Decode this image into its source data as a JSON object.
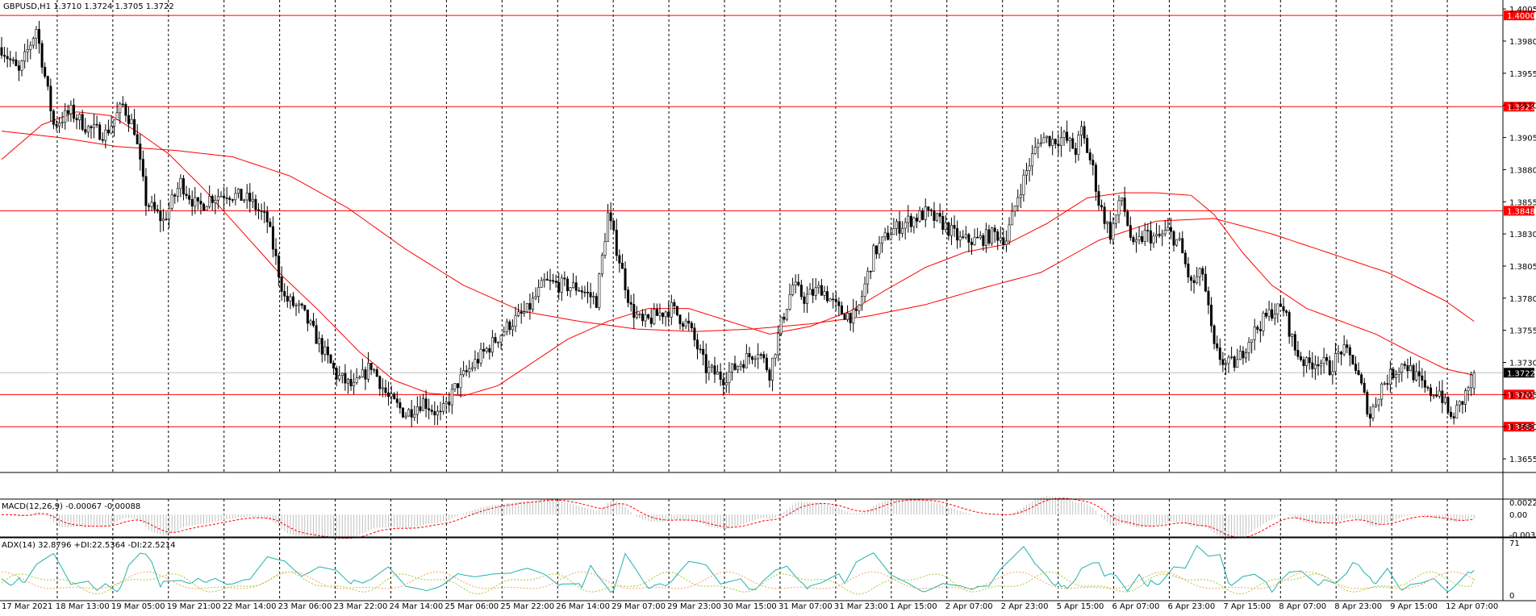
{
  "window": {
    "symbol_line": "GBPUSD,H1  1.3710 1.3724 1.3705 1.3722",
    "macd_label": "MACD(12,26,9) -0.00067 -0.00088",
    "adx_label": "ADX(14) 32.8796 +DI:22.5364 -DI:22.5214"
  },
  "colors": {
    "background": "#ffffff",
    "candle": "#000000",
    "level_line": "#ff0000",
    "ma": "#ff0000",
    "grid": "#000000",
    "price_tag_bg": "#ff0000",
    "current_price_tag_bg": "#000000",
    "macd_hist": "#c0c0c0",
    "macd_signal": "#ff0000",
    "adx_main": "#20b2aa",
    "di_plus": "#9acd32",
    "di_minus": "#f4a460"
  },
  "chart_data": [
    {
      "type": "candlestick",
      "symbol": "GBPUSD",
      "timeframe": "H1",
      "ohlc_last": {
        "open": 1.371,
        "high": 1.3724,
        "low": 1.3705,
        "close": 1.3722
      },
      "ylim": [
        1.3645,
        1.4012
      ],
      "y_ticks": [
        1.4005,
        1.398,
        1.3955,
        1.393,
        1.3905,
        1.388,
        1.3855,
        1.383,
        1.3805,
        1.378,
        1.3755,
        1.373,
        1.3705,
        1.368,
        1.3655
      ],
      "y_tick_labels": [
        "1.4005",
        "1.3980",
        "1.3955",
        "1.3930",
        "1.3905",
        "1.3880",
        "1.3855",
        "1.3830",
        "1.3805",
        "1.3780",
        "1.3755",
        "1.3730",
        "1.3705",
        "1.3680",
        "1.3655"
      ],
      "x_tick_labels": [
        "17 Mar 2021",
        "18 Mar 13:00",
        "19 Mar 05:00",
        "19 Mar 21:00",
        "22 Mar 14:00",
        "23 Mar 06:00",
        "23 Mar 22:00",
        "24 Mar 14:00",
        "25 Mar 06:00",
        "25 Mar 22:00",
        "26 Mar 14:00",
        "29 Mar 07:00",
        "29 Mar 23:00",
        "30 Mar 15:00",
        "31 Mar 07:00",
        "31 Mar 23:00",
        "1 Apr 15:00",
        "2 Apr 07:00",
        "2 Apr 23:00",
        "5 Apr 15:00",
        "6 Apr 07:00",
        "6 Apr 23:00",
        "7 Apr 15:00",
        "8 Apr 07:00",
        "8 Apr 23:00",
        "9 Apr 15:00",
        "12 Apr 07:00"
      ],
      "grid": true,
      "horizontal_levels": [
        {
          "price": 1.4,
          "label": "1.4000"
        },
        {
          "price": 1.3929,
          "label": "1.3929"
        },
        {
          "price": 1.3848,
          "label": "1.3848"
        },
        {
          "price": 1.3705,
          "label": "1.3705"
        },
        {
          "price": 1.368,
          "label": "1.3680"
        }
      ],
      "current_price": {
        "price": 1.3722,
        "label": "1.3722"
      },
      "close_path": [
        [
          0,
          1.3975
        ],
        [
          6,
          1.3955
        ],
        [
          12,
          1.399
        ],
        [
          18,
          1.3915
        ],
        [
          24,
          1.3925
        ],
        [
          30,
          1.3912
        ],
        [
          36,
          1.3908
        ],
        [
          42,
          1.393
        ],
        [
          46,
          1.3912
        ],
        [
          50,
          1.3855
        ],
        [
          56,
          1.384
        ],
        [
          62,
          1.387
        ],
        [
          68,
          1.385
        ],
        [
          72,
          1.3858
        ],
        [
          78,
          1.3862
        ],
        [
          86,
          1.3856
        ],
        [
          92,
          1.384
        ],
        [
          98,
          1.378
        ],
        [
          104,
          1.377
        ],
        [
          110,
          1.3745
        ],
        [
          116,
          1.372
        ],
        [
          122,
          1.371
        ],
        [
          128,
          1.3728
        ],
        [
          134,
          1.3702
        ],
        [
          140,
          1.369
        ],
        [
          146,
          1.37
        ],
        [
          152,
          1.3688
        ],
        [
          158,
          1.3714
        ],
        [
          164,
          1.373
        ],
        [
          170,
          1.3745
        ],
        [
          176,
          1.376
        ],
        [
          182,
          1.377
        ],
        [
          188,
          1.3792
        ],
        [
          194,
          1.379
        ],
        [
          200,
          1.3788
        ],
        [
          206,
          1.3778
        ],
        [
          210,
          1.3845
        ],
        [
          214,
          1.381
        ],
        [
          218,
          1.3772
        ],
        [
          222,
          1.376
        ],
        [
          228,
          1.3768
        ],
        [
          232,
          1.3772
        ],
        [
          238,
          1.3758
        ],
        [
          244,
          1.3725
        ],
        [
          250,
          1.3718
        ],
        [
          256,
          1.373
        ],
        [
          262,
          1.374
        ],
        [
          266,
          1.3722
        ],
        [
          270,
          1.376
        ],
        [
          274,
          1.379
        ],
        [
          278,
          1.378
        ],
        [
          284,
          1.3788
        ],
        [
          290,
          1.377
        ],
        [
          296,
          1.3765
        ],
        [
          302,
          1.3815
        ],
        [
          308,
          1.3832
        ],
        [
          314,
          1.384
        ],
        [
          320,
          1.3846
        ],
        [
          326,
          1.3838
        ],
        [
          332,
          1.3825
        ],
        [
          338,
          1.3825
        ],
        [
          344,
          1.383
        ],
        [
          348,
          1.3826
        ],
        [
          352,
          1.386
        ],
        [
          356,
          1.3885
        ],
        [
          360,
          1.3905
        ],
        [
          364,
          1.3903
        ],
        [
          368,
          1.3905
        ],
        [
          372,
          1.3895
        ],
        [
          374,
          1.391
        ],
        [
          378,
          1.388
        ],
        [
          380,
          1.3855
        ],
        [
          384,
          1.383
        ],
        [
          388,
          1.3858
        ],
        [
          392,
          1.3818
        ],
        [
          396,
          1.383
        ],
        [
          400,
          1.3826
        ],
        [
          404,
          1.3832
        ],
        [
          408,
          1.3822
        ],
        [
          412,
          1.379
        ],
        [
          416,
          1.38
        ],
        [
          420,
          1.374
        ],
        [
          424,
          1.3728
        ],
        [
          428,
          1.373
        ],
        [
          432,
          1.3748
        ],
        [
          436,
          1.376
        ],
        [
          440,
          1.377
        ],
        [
          444,
          1.3772
        ],
        [
          448,
          1.374
        ],
        [
          452,
          1.3728
        ],
        [
          456,
          1.3732
        ],
        [
          460,
          1.3725
        ],
        [
          464,
          1.374
        ],
        [
          468,
          1.3732
        ],
        [
          470,
          1.3718
        ],
        [
          474,
          1.3688
        ],
        [
          478,
          1.3712
        ],
        [
          482,
          1.3722
        ],
        [
          486,
          1.373
        ],
        [
          490,
          1.3718
        ],
        [
          494,
          1.3706
        ],
        [
          498,
          1.3708
        ],
        [
          502,
          1.3686
        ],
        [
          506,
          1.37
        ],
        [
          510,
          1.3722
        ]
      ],
      "ma_fast": [
        [
          0,
          1.3888
        ],
        [
          14,
          1.3915
        ],
        [
          26,
          1.3925
        ],
        [
          38,
          1.3922
        ],
        [
          48,
          1.3908
        ],
        [
          58,
          1.3892
        ],
        [
          70,
          1.3865
        ],
        [
          82,
          1.3835
        ],
        [
          96,
          1.38
        ],
        [
          110,
          1.377
        ],
        [
          124,
          1.3738
        ],
        [
          136,
          1.3716
        ],
        [
          148,
          1.3706
        ],
        [
          160,
          1.3704
        ],
        [
          172,
          1.3712
        ],
        [
          184,
          1.373
        ],
        [
          196,
          1.3748
        ],
        [
          210,
          1.3762
        ],
        [
          224,
          1.3772
        ],
        [
          238,
          1.3772
        ],
        [
          252,
          1.3762
        ],
        [
          266,
          1.3752
        ],
        [
          280,
          1.3758
        ],
        [
          294,
          1.377
        ],
        [
          306,
          1.3786
        ],
        [
          320,
          1.3804
        ],
        [
          334,
          1.3816
        ],
        [
          348,
          1.3822
        ],
        [
          362,
          1.3838
        ],
        [
          376,
          1.3858
        ],
        [
          388,
          1.3862
        ],
        [
          400,
          1.3862
        ],
        [
          412,
          1.386
        ],
        [
          420,
          1.3845
        ],
        [
          430,
          1.3815
        ],
        [
          440,
          1.379
        ],
        [
          452,
          1.3772
        ],
        [
          464,
          1.3762
        ],
        [
          476,
          1.3752
        ],
        [
          488,
          1.3738
        ],
        [
          500,
          1.3725
        ],
        [
          510,
          1.372
        ]
      ],
      "ma_slow": [
        [
          0,
          1.391
        ],
        [
          20,
          1.3905
        ],
        [
          40,
          1.3898
        ],
        [
          60,
          1.3895
        ],
        [
          80,
          1.389
        ],
        [
          100,
          1.3875
        ],
        [
          120,
          1.385
        ],
        [
          140,
          1.3818
        ],
        [
          160,
          1.379
        ],
        [
          180,
          1.377
        ],
        [
          200,
          1.3762
        ],
        [
          220,
          1.3756
        ],
        [
          240,
          1.3754
        ],
        [
          260,
          1.3756
        ],
        [
          280,
          1.376
        ],
        [
          300,
          1.3766
        ],
        [
          320,
          1.3775
        ],
        [
          340,
          1.3788
        ],
        [
          360,
          1.38
        ],
        [
          380,
          1.3825
        ],
        [
          400,
          1.384
        ],
        [
          420,
          1.3842
        ],
        [
          440,
          1.383
        ],
        [
          460,
          1.3815
        ],
        [
          480,
          1.38
        ],
        [
          500,
          1.3778
        ],
        [
          510,
          1.3762
        ]
      ]
    },
    {
      "type": "bar",
      "indicator": "MACD",
      "params": "12,26,9",
      "main": -0.00067,
      "signal": -0.00088,
      "y_tick_labels": [
        "0.00229",
        "0.00",
        "-0.00319"
      ],
      "ylim": [
        -0.00319,
        0.00229
      ]
    },
    {
      "type": "line",
      "indicator": "ADX",
      "period": 14,
      "adx": 32.8796,
      "plus_di": 22.5364,
      "minus_di": 22.5214,
      "y_tick_labels": [
        "71",
        "0"
      ],
      "ylim": [
        0,
        71
      ]
    }
  ]
}
